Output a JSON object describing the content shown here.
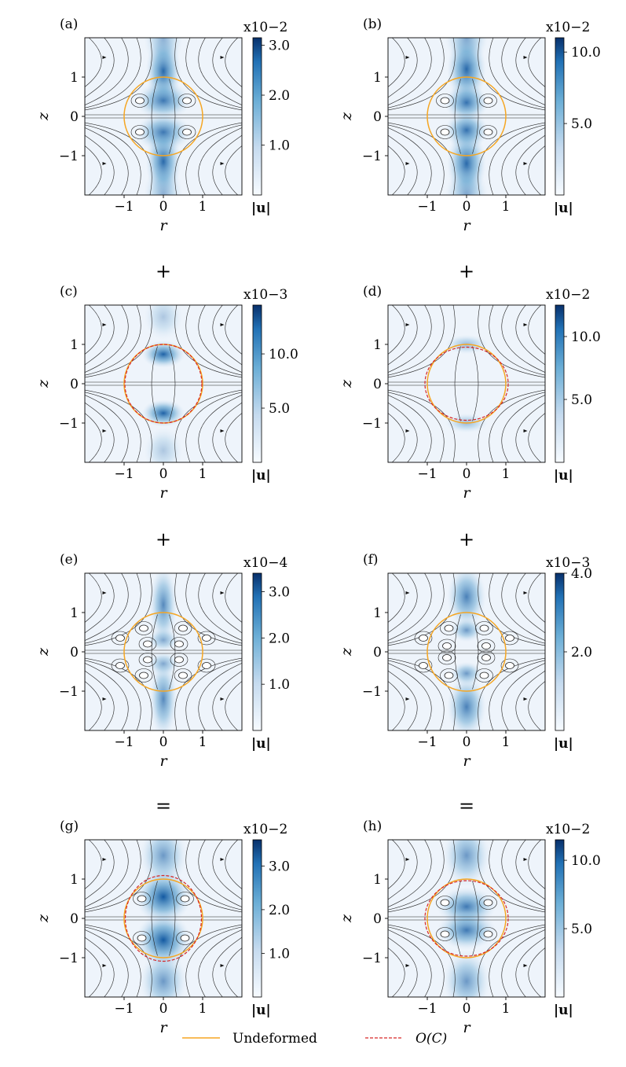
{
  "colorbar_label": "|u|",
  "legend": [
    {
      "label": "Undeformed",
      "color": "#f5a623",
      "style": "solid"
    },
    {
      "label": "O(C)",
      "color": "#d62728",
      "style": "dashed"
    }
  ],
  "operators": [
    "+",
    "+",
    "+",
    "+",
    "=",
    "="
  ],
  "chart_data": [
    {
      "type": "heatmap",
      "panel": "(a)",
      "xlabel": "r",
      "ylabel": "z",
      "xlim": [
        -2,
        2
      ],
      "ylim": [
        -2,
        2
      ],
      "xticks": [
        "−1",
        "0",
        "1"
      ],
      "yticks": [
        "1",
        "0",
        "−1"
      ],
      "colorbar": {
        "exponent_label": "x10−2",
        "ticks": [
          "3.0",
          "2.0",
          "1.0"
        ],
        "tick_values": [
          3.0,
          2.0,
          1.0
        ],
        "max": 3.15
      },
      "color": "#08306b"
    },
    {
      "type": "heatmap",
      "panel": "(b)",
      "xlabel": "r",
      "ylabel": "z",
      "xlim": [
        -2,
        2
      ],
      "ylim": [
        -2,
        2
      ],
      "xticks": [
        "−1",
        "0",
        "1"
      ],
      "yticks": [
        "1",
        "0",
        "−1"
      ],
      "colorbar": {
        "exponent_label": "x10−2",
        "ticks": [
          "10.0",
          "5.0"
        ],
        "tick_values": [
          10.0,
          5.0
        ],
        "max": 11.0
      },
      "color": "#08306b"
    },
    {
      "type": "heatmap",
      "panel": "(c)",
      "xlabel": "r",
      "ylabel": "z",
      "xlim": [
        -2,
        2
      ],
      "ylim": [
        -2,
        2
      ],
      "xticks": [
        "−1",
        "0",
        "1"
      ],
      "yticks": [
        "1",
        "0",
        "−1"
      ],
      "colorbar": {
        "exponent_label": "x10−3",
        "ticks": [
          "10.0",
          "5.0"
        ],
        "tick_values": [
          10.0,
          5.0
        ],
        "max": 14.5
      },
      "color": "#08306b"
    },
    {
      "type": "heatmap",
      "panel": "(d)",
      "xlabel": "r",
      "ylabel": "z",
      "xlim": [
        -2,
        2
      ],
      "ylim": [
        -2,
        2
      ],
      "xticks": [
        "−1",
        "0",
        "1"
      ],
      "yticks": [
        "1",
        "0",
        "−1"
      ],
      "colorbar": {
        "exponent_label": "x10−2",
        "ticks": [
          "10.0",
          "5.0"
        ],
        "tick_values": [
          10.0,
          5.0
        ],
        "max": 12.5
      },
      "color": "#08306b"
    },
    {
      "type": "heatmap",
      "panel": "(e)",
      "xlabel": "r",
      "ylabel": "z",
      "xlim": [
        -2,
        2
      ],
      "ylim": [
        -2,
        2
      ],
      "xticks": [
        "−1",
        "0",
        "1"
      ],
      "yticks": [
        "1",
        "0",
        "−1"
      ],
      "colorbar": {
        "exponent_label": "x10−4",
        "ticks": [
          "3.0",
          "2.0",
          "1.0"
        ],
        "tick_values": [
          3.0,
          2.0,
          1.0
        ],
        "max": 3.4
      },
      "color": "#08306b"
    },
    {
      "type": "heatmap",
      "panel": "(f)",
      "xlabel": "r",
      "ylabel": "z",
      "xlim": [
        -2,
        2
      ],
      "ylim": [
        -2,
        2
      ],
      "xticks": [
        "−1",
        "0",
        "1"
      ],
      "yticks": [
        "1",
        "0",
        "−1"
      ],
      "colorbar": {
        "exponent_label": "x10−3",
        "ticks": [
          "4.0",
          "2.0"
        ],
        "tick_values": [
          4.0,
          2.0
        ],
        "max": 4.0
      },
      "color": "#08306b"
    },
    {
      "type": "heatmap",
      "panel": "(g)",
      "xlabel": "r",
      "ylabel": "z",
      "xlim": [
        -2,
        2
      ],
      "ylim": [
        -2,
        2
      ],
      "xticks": [
        "−1",
        "0",
        "1"
      ],
      "yticks": [
        "1",
        "0",
        "−1"
      ],
      "colorbar": {
        "exponent_label": "x10−2",
        "ticks": [
          "3.0",
          "2.0",
          "1.0"
        ],
        "tick_values": [
          3.0,
          2.0,
          1.0
        ],
        "max": 3.6
      },
      "color": "#08306b"
    },
    {
      "type": "heatmap",
      "panel": "(h)",
      "xlabel": "r",
      "ylabel": "z",
      "xlim": [
        -2,
        2
      ],
      "ylim": [
        -2,
        2
      ],
      "xticks": [
        "−1",
        "0",
        "1"
      ],
      "yticks": [
        "1",
        "0",
        "−1"
      ],
      "colorbar": {
        "exponent_label": "x10−2",
        "ticks": [
          "10.0",
          "5.0"
        ],
        "tick_values": [
          10.0,
          5.0
        ],
        "max": 11.5
      },
      "color": "#08306b"
    }
  ]
}
